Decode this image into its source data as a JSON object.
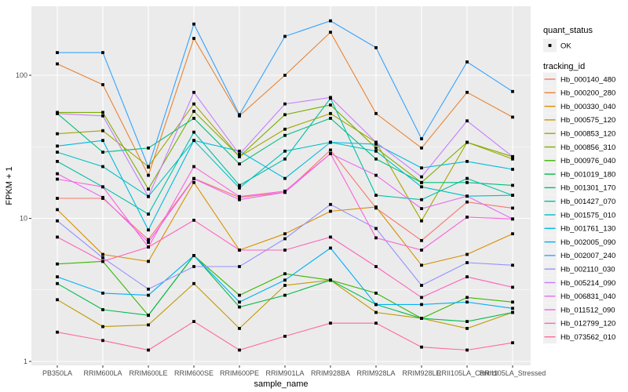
{
  "chart_data": {
    "type": "line",
    "xlabel": "sample_name",
    "ylabel": "FPKM + 1",
    "y_scale": "log10",
    "y_ticks": [
      1,
      10,
      100
    ],
    "y_minor_ticks": [
      3.162,
      31.62
    ],
    "ylim": [
      1,
      300
    ],
    "grid": "on",
    "panel_bg": "#ebebeb",
    "grid_color": "#ffffff",
    "point_color": "#000000",
    "legend_position": "right",
    "x": [
      "PB350LA",
      "RRIM600LA",
      "RRIM600LE",
      "RRIM600SE",
      "RRIM600PE",
      "RRIM901LA",
      "RRIM928BA",
      "RRIM928LA",
      "RRIM928LE",
      "RRII105LA_Control",
      "RRII105LA_Stressed"
    ],
    "series": [
      {
        "name": "Hb_000140_480",
        "color": "#F8766D",
        "values": [
          13.8,
          13.8,
          7.1,
          19,
          14,
          15.2,
          30,
          11.8,
          7.0,
          13,
          11.8
        ]
      },
      {
        "name": "Hb_000200_280",
        "color": "#EA8331",
        "values": [
          120,
          86,
          20,
          181,
          52,
          100,
          200,
          54,
          31,
          76,
          51
        ]
      },
      {
        "name": "Hb_000330_040",
        "color": "#D89000",
        "values": [
          11.5,
          5.6,
          5.0,
          17.8,
          6.0,
          7.8,
          11.2,
          12,
          4.7,
          5.6,
          7.8
        ]
      },
      {
        "name": "Hb_000575_120",
        "color": "#C09B00",
        "values": [
          2.7,
          1.75,
          1.8,
          3.5,
          1.7,
          3.4,
          3.7,
          2.2,
          2.0,
          1.7,
          2.2
        ]
      },
      {
        "name": "Hb_000853_120",
        "color": "#A3A500",
        "values": [
          39,
          41,
          23,
          63,
          27,
          42,
          54,
          34,
          9.6,
          34,
          26
        ]
      },
      {
        "name": "Hb_000856_310",
        "color": "#7CAE00",
        "values": [
          55,
          55,
          16,
          56,
          27,
          53,
          62,
          31,
          17.8,
          34,
          27
        ]
      },
      {
        "name": "Hb_000976_040",
        "color": "#39B600",
        "values": [
          4.8,
          5.0,
          2.1,
          5.5,
          2.9,
          4.1,
          3.7,
          3.0,
          2.0,
          2.8,
          2.6
        ]
      },
      {
        "name": "Hb_001019_180",
        "color": "#00BB4E",
        "values": [
          3.5,
          2.3,
          2.1,
          5.5,
          2.4,
          2.9,
          3.7,
          2.5,
          2.0,
          1.9,
          2.2
        ]
      },
      {
        "name": "Hb_001301_170",
        "color": "#00BF7D",
        "values": [
          54,
          29,
          31,
          50,
          24,
          38,
          50,
          26,
          17.8,
          17.8,
          17
        ]
      },
      {
        "name": "Hb_001427_070",
        "color": "#00C1A3",
        "values": [
          25,
          16.6,
          10.7,
          40,
          17,
          26,
          69,
          14.5,
          13.5,
          19,
          14.5
        ]
      },
      {
        "name": "Hb_001575_010",
        "color": "#00BFC4",
        "values": [
          29,
          23,
          14.2,
          35,
          16.3,
          29.5,
          34,
          29.5,
          16.6,
          14.3,
          14.5
        ]
      },
      {
        "name": "Hb_001761_130",
        "color": "#00BAE0",
        "values": [
          32,
          35,
          8.3,
          35,
          29.5,
          19,
          34,
          33,
          22.5,
          25,
          22
        ]
      },
      {
        "name": "Hb_002005_090",
        "color": "#00B0F6",
        "values": [
          3.9,
          3.0,
          2.9,
          5.5,
          2.6,
          3.7,
          6.2,
          2.5,
          2.5,
          2.6,
          2.35
        ]
      },
      {
        "name": "Hb_002007_240",
        "color": "#35A2FF",
        "values": [
          144,
          144,
          22.8,
          228,
          53,
          187,
          240,
          156,
          36,
          124,
          77
        ]
      },
      {
        "name": "Hb_002110_030",
        "color": "#9590FF",
        "values": [
          9.6,
          5.3,
          3.2,
          4.6,
          4.6,
          7.2,
          12.5,
          8.5,
          3.4,
          4.9,
          4.7
        ]
      },
      {
        "name": "Hb_005214_090",
        "color": "#C77CFF",
        "values": [
          54,
          52,
          14.2,
          76,
          28,
          63,
          70,
          34,
          19.5,
          48,
          27
        ]
      },
      {
        "name": "Hb_006831_040",
        "color": "#E76BF3",
        "values": [
          20.5,
          14,
          6.8,
          18.9,
          13.5,
          15.2,
          28.3,
          20,
          11.7,
          14.3,
          9.9
        ]
      },
      {
        "name": "Hb_011512_090",
        "color": "#FA62DB",
        "values": [
          18.8,
          16.6,
          6.3,
          23,
          14.2,
          15.5,
          28.3,
          7.3,
          6.0,
          10.2,
          9.9
        ]
      },
      {
        "name": "Hb_012799_120",
        "color": "#FF62BC",
        "values": [
          7.4,
          5.0,
          6.3,
          9.7,
          6.0,
          6.0,
          7.4,
          4.6,
          2.8,
          3.9,
          3.3
        ]
      },
      {
        "name": "Hb_073562_010",
        "color": "#FF6A98",
        "values": [
          1.6,
          1.4,
          1.2,
          1.9,
          1.2,
          1.5,
          1.85,
          1.85,
          1.26,
          1.2,
          1.35
        ]
      }
    ],
    "legend": {
      "quant_status_title": "quant_status",
      "quant_status_items": [
        {
          "label": "OK",
          "marker": "black-point"
        }
      ],
      "tracking_title": "tracking_id",
      "key_bg": "#f0f0f0"
    }
  }
}
